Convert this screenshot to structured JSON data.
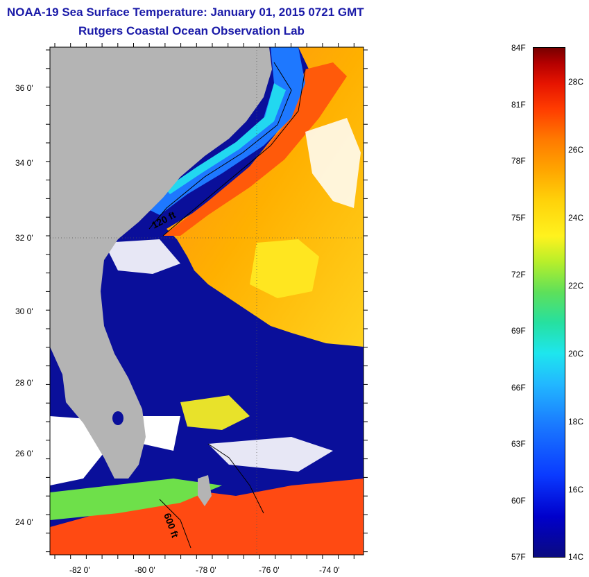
{
  "header": {
    "title": "NOAA-19 Sea Surface Temperature:  January 01, 2015 0721 GMT",
    "subtitle": "Rutgers Coastal Ocean Observation Lab"
  },
  "map": {
    "lat_labels": [
      "36 0'",
      "34 0'",
      "32 0'",
      "30 0'",
      "28 0'",
      "26 0'",
      "24 0'"
    ],
    "lon_labels": [
      "-82 0'",
      "-80 0'",
      "-78 0'",
      "-76 0'",
      "-74 0'"
    ],
    "contour_labels": [
      "120 ft",
      "600 ft"
    ],
    "colors": {
      "land": "#b4b4b4",
      "cloud": "#ffffff",
      "cold": "#0a0f9a",
      "warm": "#ff7a10"
    }
  },
  "colorbar": {
    "fahrenheit_labels": [
      "84F",
      "81F",
      "78F",
      "75F",
      "72F",
      "69F",
      "66F",
      "63F",
      "60F",
      "57F"
    ],
    "celsius_labels": [
      "28C",
      "26C",
      "24C",
      "22C",
      "20C",
      "18C",
      "16C",
      "14C"
    ]
  }
}
